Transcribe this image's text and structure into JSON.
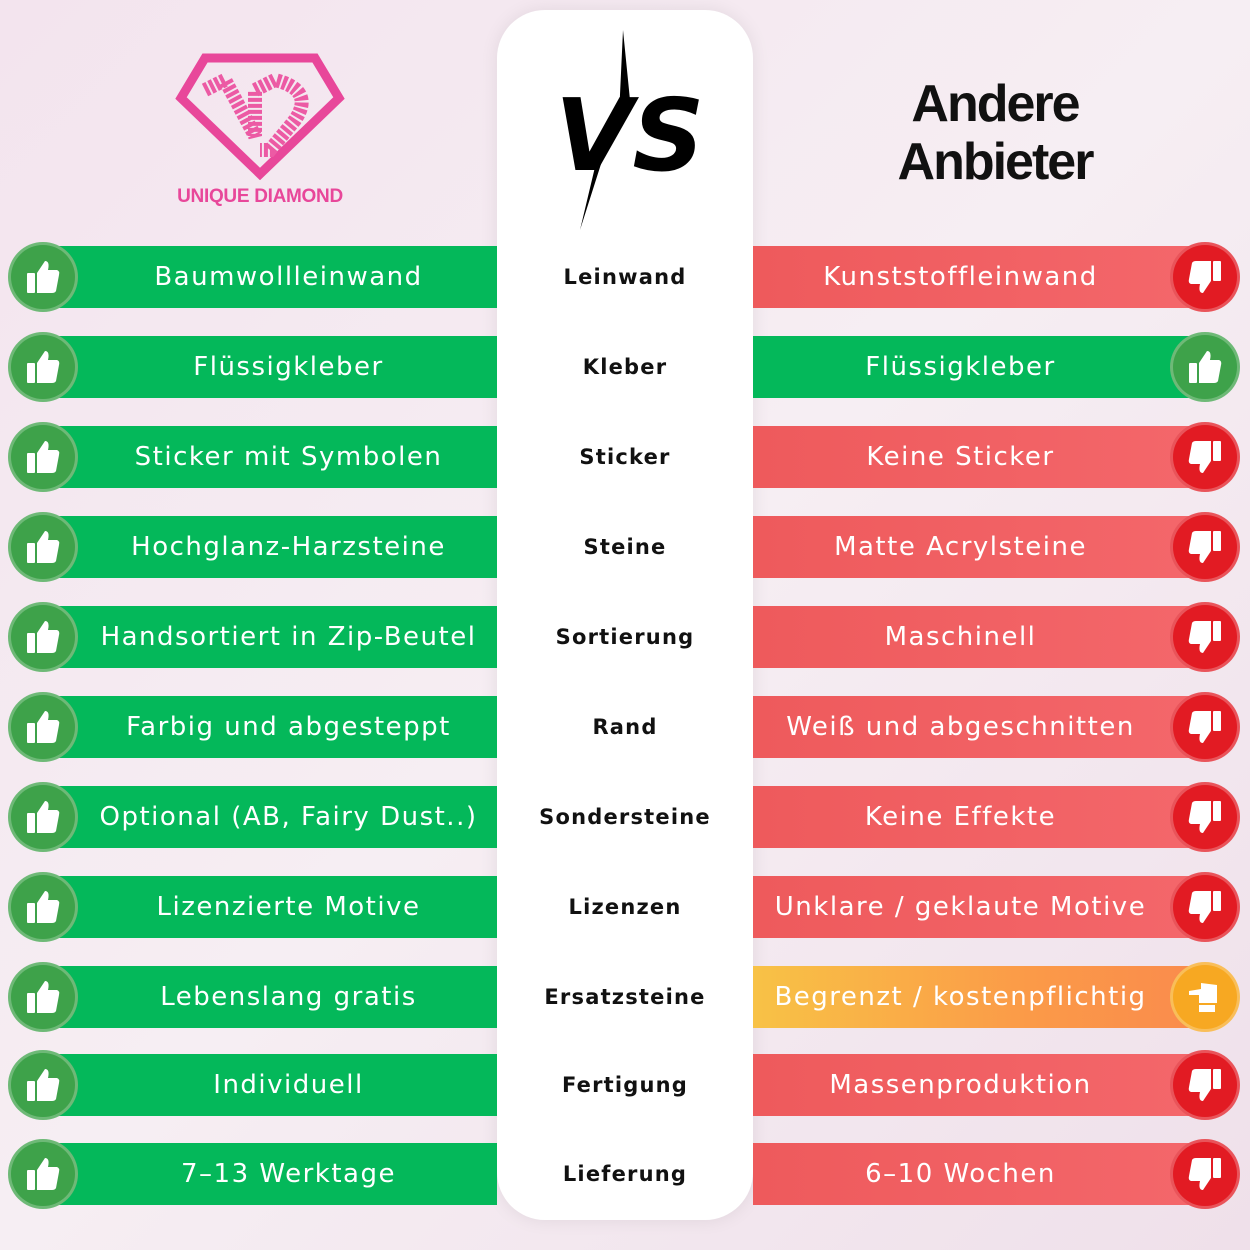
{
  "brand": {
    "name": "UNIQUE DIAMOND",
    "color": "#e8479a"
  },
  "vs_label": "VS",
  "other": {
    "title_line1": "Andere",
    "title_line2": "Anbieter"
  },
  "colors": {
    "good": "#04b85a",
    "bad": "#ee5a5c",
    "neutral": "#f8a830"
  },
  "rows": [
    {
      "category": "Leinwand",
      "ours": "Baumwollleinwand",
      "theirs": "Kunststoffleinwand",
      "theirs_rating": "bad"
    },
    {
      "category": "Kleber",
      "ours": "Flüssigkleber",
      "theirs": "Flüssigkleber",
      "theirs_rating": "good"
    },
    {
      "category": "Sticker",
      "ours": "Sticker mit Symbolen",
      "theirs": "Keine Sticker",
      "theirs_rating": "bad"
    },
    {
      "category": "Steine",
      "ours": "Hochglanz-Harzsteine",
      "theirs": "Matte Acrylsteine",
      "theirs_rating": "bad"
    },
    {
      "category": "Sortierung",
      "ours": "Handsortiert in Zip-Beutel",
      "theirs": "Maschinell",
      "theirs_rating": "bad"
    },
    {
      "category": "Rand",
      "ours": "Farbig und abgesteppt",
      "theirs": "Weiß und abgeschnitten",
      "theirs_rating": "bad"
    },
    {
      "category": "Sondersteine",
      "ours": "Optional (AB, Fairy Dust..)",
      "theirs": "Keine Effekte",
      "theirs_rating": "bad"
    },
    {
      "category": "Lizenzen",
      "ours": "Lizenzierte Motive",
      "theirs": "Unklare / geklaute Motive",
      "theirs_rating": "bad"
    },
    {
      "category": "Ersatzsteine",
      "ours": "Lebenslang gratis",
      "theirs": "Begrenzt / kostenpflichtig",
      "theirs_rating": "neutral"
    },
    {
      "category": "Fertigung",
      "ours": "Individuell",
      "theirs": "Massenproduktion",
      "theirs_rating": "bad"
    },
    {
      "category": "Lieferung",
      "ours": "7–13 Werktage",
      "theirs": "6–10 Wochen",
      "theirs_rating": "bad"
    }
  ]
}
